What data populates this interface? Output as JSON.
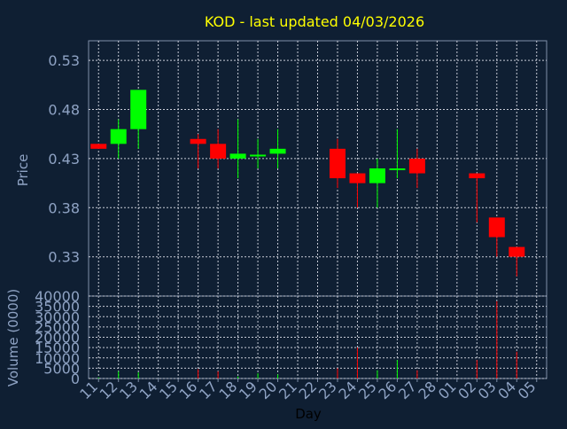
{
  "chart_data": [
    {
      "type": "candlestick",
      "title": "KOD - last updated 04/03/2026",
      "ylabel": "Price",
      "ylim": [
        0.29,
        0.55
      ],
      "y_ticks": [
        0.33,
        0.38,
        0.43,
        0.48,
        0.53
      ],
      "grid": true,
      "candles": [
        {
          "day": "11",
          "open": 0.445,
          "close": 0.44,
          "high": 0.445,
          "low": 0.44
        },
        {
          "day": "12",
          "open": 0.445,
          "close": 0.46,
          "high": 0.47,
          "low": 0.43
        },
        {
          "day": "13",
          "open": 0.46,
          "close": 0.5,
          "high": 0.5,
          "low": 0.44
        },
        {
          "day": "16",
          "open": 0.45,
          "close": 0.445,
          "high": 0.455,
          "low": 0.42
        },
        {
          "day": "17",
          "open": 0.445,
          "close": 0.43,
          "high": 0.46,
          "low": 0.42
        },
        {
          "day": "18",
          "open": 0.43,
          "close": 0.435,
          "high": 0.47,
          "low": 0.41
        },
        {
          "day": "19",
          "open": 0.433,
          "close": 0.434,
          "high": 0.45,
          "low": 0.42
        },
        {
          "day": "20",
          "open": 0.435,
          "close": 0.44,
          "high": 0.46,
          "low": 0.42
        },
        {
          "day": "23",
          "open": 0.44,
          "close": 0.41,
          "high": 0.45,
          "low": 0.4
        },
        {
          "day": "24",
          "open": 0.415,
          "close": 0.405,
          "high": 0.415,
          "low": 0.38
        },
        {
          "day": "25",
          "open": 0.405,
          "close": 0.42,
          "high": 0.43,
          "low": 0.38
        },
        {
          "day": "26",
          "open": 0.419,
          "close": 0.42,
          "high": 0.46,
          "low": 0.41
        },
        {
          "day": "27",
          "open": 0.43,
          "close": 0.415,
          "high": 0.44,
          "low": 0.4
        },
        {
          "day": "02",
          "open": 0.415,
          "close": 0.41,
          "high": 0.415,
          "low": 0.365
        },
        {
          "day": "03",
          "open": 0.37,
          "close": 0.35,
          "high": 0.37,
          "low": 0.33
        },
        {
          "day": "04",
          "open": 0.34,
          "close": 0.33,
          "high": 0.34,
          "low": 0.31
        }
      ]
    },
    {
      "type": "bar",
      "ylabel": "Volume (0000)",
      "xlabel": "Day",
      "ylim": [
        0,
        40000
      ],
      "y_ticks": [
        0,
        5000,
        10000,
        15000,
        20000,
        25000,
        30000,
        35000,
        40000
      ],
      "categories": [
        "11",
        "12",
        "13",
        "14",
        "15",
        "16",
        "17",
        "18",
        "19",
        "20",
        "21",
        "22",
        "23",
        "24",
        "25",
        "26",
        "27",
        "28",
        "01",
        "02",
        "03",
        "04",
        "05"
      ],
      "volumes": [
        {
          "day": "11",
          "value": 500,
          "color": "#00ff00"
        },
        {
          "day": "12",
          "value": 3500,
          "color": "#00ff00"
        },
        {
          "day": "13",
          "value": 3000,
          "color": "#00ff00"
        },
        {
          "day": "16",
          "value": 4500,
          "color": "#ff0000"
        },
        {
          "day": "17",
          "value": 3500,
          "color": "#ff0000"
        },
        {
          "day": "18",
          "value": 1000,
          "color": "#00ff00"
        },
        {
          "day": "19",
          "value": 2500,
          "color": "#00ff00"
        },
        {
          "day": "20",
          "value": 2000,
          "color": "#00ff00"
        },
        {
          "day": "23",
          "value": 5000,
          "color": "#ff0000"
        },
        {
          "day": "24",
          "value": 15000,
          "color": "#ff0000"
        },
        {
          "day": "25",
          "value": 4000,
          "color": "#00ff00"
        },
        {
          "day": "26",
          "value": 9000,
          "color": "#00ff00"
        },
        {
          "day": "27",
          "value": 4000,
          "color": "#ff0000"
        },
        {
          "day": "02",
          "value": 9000,
          "color": "#ff0000"
        },
        {
          "day": "03",
          "value": 37500,
          "color": "#ff0000"
        },
        {
          "day": "04",
          "value": 13000,
          "color": "#ff0000"
        }
      ]
    }
  ],
  "colors": {
    "background": "#0f1f33",
    "plot_border": "#7f8fa8",
    "grid": "#c7cbd6",
    "axis_text": "#8fa3c4",
    "title": "#ffff00",
    "up": "#00ff00",
    "down": "#ff0000"
  }
}
